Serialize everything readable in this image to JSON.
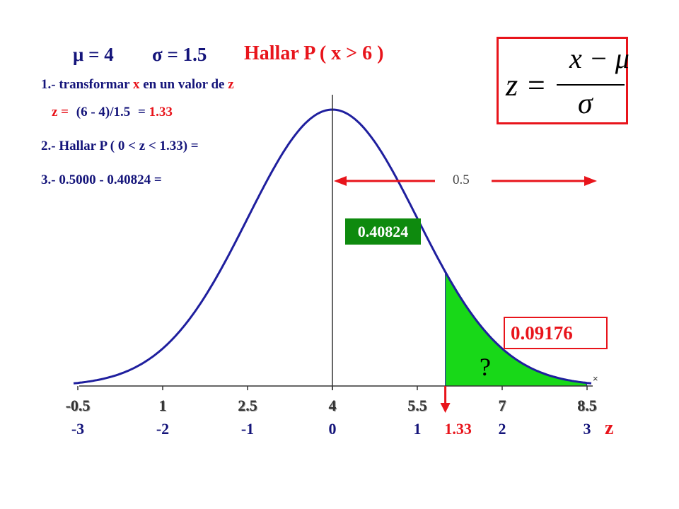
{
  "header": {
    "mu_symbol": "μ",
    "mu_value": "= 4",
    "sigma_symbol": "σ",
    "sigma_value": "= 1.5",
    "task": "Hallar P ( x > 6 )"
  },
  "steps": {
    "step1_num": "1.-",
    "step1_text_a": "transformar",
    "step1_x": "x",
    "step1_text_b": "en un valor de",
    "step1_z": "z",
    "calc_label": "z =",
    "calc_expr": "(6 - 4)/1.5",
    "calc_eq": "=",
    "calc_result": "1.33",
    "step2": "2.- Hallar P ( 0 < z < 1.33) =",
    "step3": "3.- 0.5000 - 0.40824 ="
  },
  "formula": {
    "lhs": "z =",
    "numerator": "x − μ",
    "denominator": "σ"
  },
  "chart_data": {
    "type": "area",
    "x_ticks": [
      "-0.5",
      "1",
      "2.5",
      "4",
      "5.5",
      "7",
      "8.5"
    ],
    "z_ticks": [
      "-3",
      "-2",
      "-1",
      "0",
      "1",
      "1.33",
      "2",
      "3"
    ],
    "z_axis_label": "z",
    "mean": 4,
    "sd": 1.5,
    "shade_from_z": 1.33,
    "shade_to_z": 3,
    "marker_z": 1.33,
    "half_area_label": "0.5",
    "inner_area_label": "0.40824",
    "tail_area_label": "0.09176",
    "tail_question": "?",
    "colors": {
      "curve": "#1f1f9e",
      "shade": "#18d818",
      "arrow": "#e8141b",
      "inner_box": "#0e8a0e"
    }
  }
}
